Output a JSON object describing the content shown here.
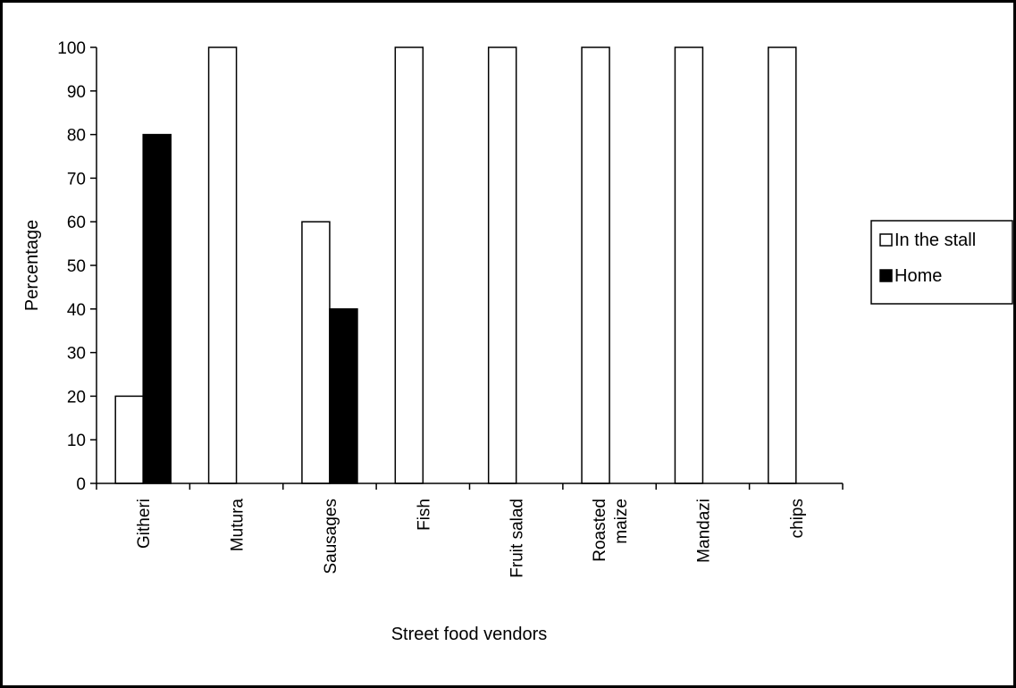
{
  "chart_data": {
    "type": "bar",
    "title": "",
    "xlabel": "Street food vendors",
    "ylabel": "Percentage",
    "ylim": [
      0,
      100
    ],
    "yticks": [
      0,
      10,
      20,
      30,
      40,
      50,
      60,
      70,
      80,
      90,
      100
    ],
    "categories": [
      [
        "Githeri"
      ],
      [
        "Mutura"
      ],
      [
        "Sausages"
      ],
      [
        "Fish"
      ],
      [
        "Fruit salad"
      ],
      [
        "Roasted",
        "maize"
      ],
      [
        "Mandazi"
      ],
      [
        "chips"
      ]
    ],
    "series": [
      {
        "name": "In the stall",
        "color": "#ffffff",
        "values": [
          20,
          100,
          60,
          100,
          100,
          100,
          100,
          100
        ]
      },
      {
        "name": "Home",
        "color": "#000000",
        "values": [
          80,
          0,
          40,
          0,
          0,
          0,
          0,
          0
        ]
      }
    ],
    "grid": false,
    "legend": "right"
  }
}
